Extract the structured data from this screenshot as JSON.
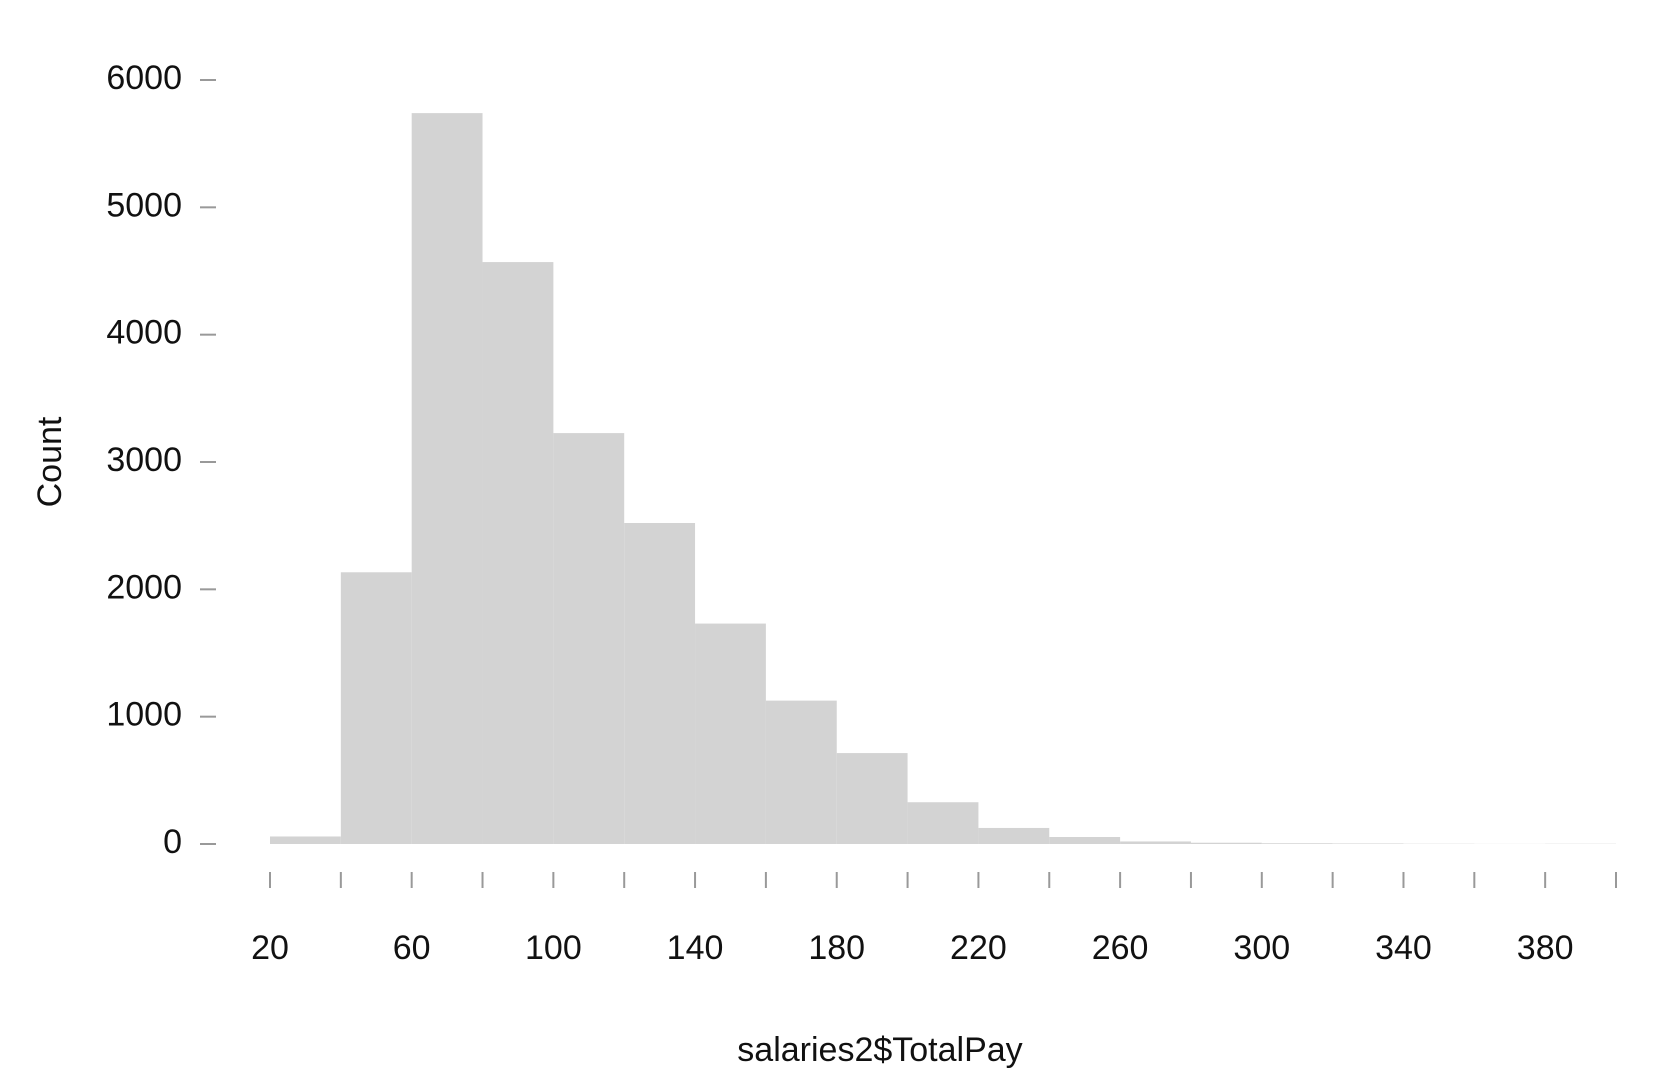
{
  "chart_data": {
    "type": "histogram",
    "x_label": "salaries2$TotalPay",
    "y_label": "Count",
    "bins": [
      20,
      40,
      60,
      80,
      100,
      120,
      140,
      160,
      180,
      200,
      220,
      240,
      260,
      280,
      300,
      320,
      340,
      360,
      380,
      400
    ],
    "values": [
      59,
      2134,
      5740,
      4570,
      3227,
      2521,
      1731,
      1126,
      714,
      328,
      126,
      55,
      20,
      10,
      6,
      4,
      2,
      1,
      2
    ],
    "color": "#d3d3d3",
    "xlim": [
      20,
      400
    ],
    "xticks": [
      20,
      60,
      100,
      140,
      180,
      220,
      260,
      300,
      340,
      380
    ],
    "ylim": [
      0,
      6000
    ],
    "yticks": [
      0,
      1000,
      2000,
      3000,
      4000,
      5000,
      6000
    ]
  }
}
